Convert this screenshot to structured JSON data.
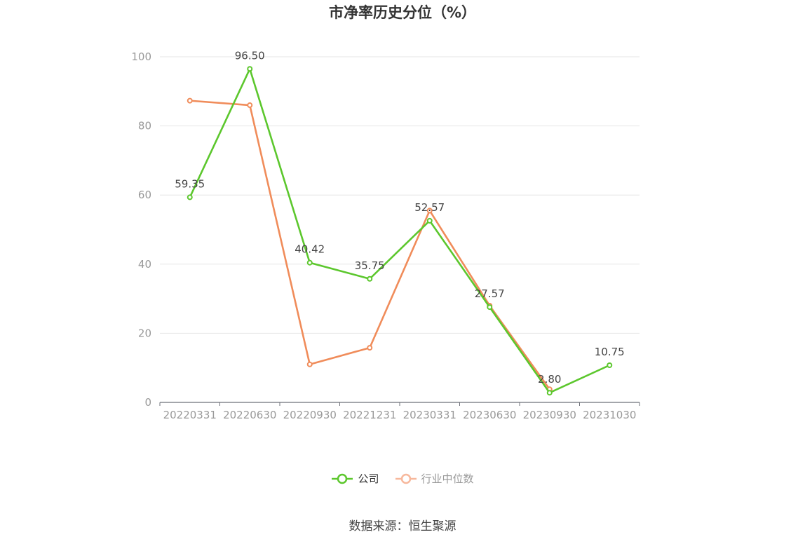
{
  "chart_data": {
    "type": "line",
    "title": "市净率历史分位（%）",
    "categories": [
      "20220331",
      "20220630",
      "20220930",
      "20221231",
      "20230331",
      "20230630",
      "20230930",
      "20231030"
    ],
    "y_ticks": [
      "0",
      "20",
      "40",
      "60",
      "80",
      "100"
    ],
    "ylim": [
      0,
      100
    ],
    "grid": true,
    "legend_position": "bottom",
    "series": [
      {
        "name": "公司",
        "color": "#5cc72d",
        "values": [
          59.35,
          96.5,
          40.42,
          35.75,
          52.57,
          27.57,
          2.8,
          10.75
        ],
        "labels": [
          "59.35",
          "96.50",
          "40.42",
          "35.75",
          "52.57",
          "27.57",
          "2.80",
          "10.75"
        ]
      },
      {
        "name": "行业中位数",
        "color": "#f08c5a",
        "values": [
          87.3,
          86.0,
          11.0,
          15.8,
          55.5,
          28.0,
          3.8,
          null
        ]
      }
    ]
  },
  "legend": {
    "company_label": "公司",
    "industry_label": "行业中位数",
    "industry_legend_color": "#f7b89c"
  },
  "source": "数据来源：恒生聚源"
}
